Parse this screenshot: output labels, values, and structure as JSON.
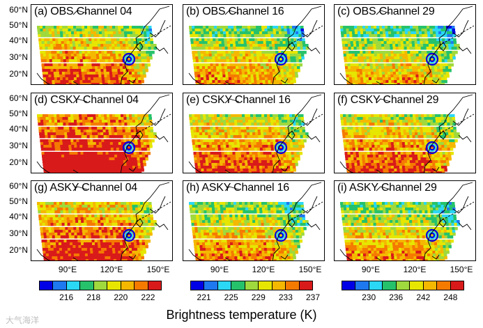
{
  "panels": [
    {
      "title": "(a) OBS Channel 04",
      "palette": 0,
      "level": 0.7
    },
    {
      "title": "(b) OBS Channel 16",
      "palette": 1,
      "level": 0.58
    },
    {
      "title": "(c) OBS Channel 29",
      "palette": 2,
      "level": 0.55
    },
    {
      "title": "(d) CSKY Channel 04",
      "palette": 0,
      "level": 0.9
    },
    {
      "title": "(e) CSKY Channel 16",
      "palette": 1,
      "level": 0.72
    },
    {
      "title": "(f) CSKY Channel 29",
      "palette": 2,
      "level": 0.72
    },
    {
      "title": "(g) ASKY Channel 04",
      "palette": 0,
      "level": 0.78
    },
    {
      "title": "(h) ASKY Channel 16",
      "palette": 1,
      "level": 0.62
    },
    {
      "title": "(i) ASKY Channel 29",
      "palette": 2,
      "level": 0.6
    }
  ],
  "lat_labels": [
    "60°N",
    "50°N",
    "40°N",
    "30°N",
    "20°N"
  ],
  "lon_labels": [
    "90°E",
    "120°E",
    "150°E"
  ],
  "colorbars": [
    {
      "ticks": [
        "216",
        "218",
        "220",
        "222"
      ]
    },
    {
      "ticks": [
        "221",
        "225",
        "229",
        "233",
        "237"
      ]
    },
    {
      "ticks": [
        "230",
        "236",
        "242",
        "248"
      ]
    }
  ],
  "colors": [
    "#0000e6",
    "#1e78f0",
    "#2ad7f5",
    "#26c26b",
    "#9fd93d",
    "#e6e600",
    "#f5b800",
    "#f57a00",
    "#d91a1a"
  ],
  "xlabel": "Brightness temperature (K)",
  "watermark": "大气海洋"
}
